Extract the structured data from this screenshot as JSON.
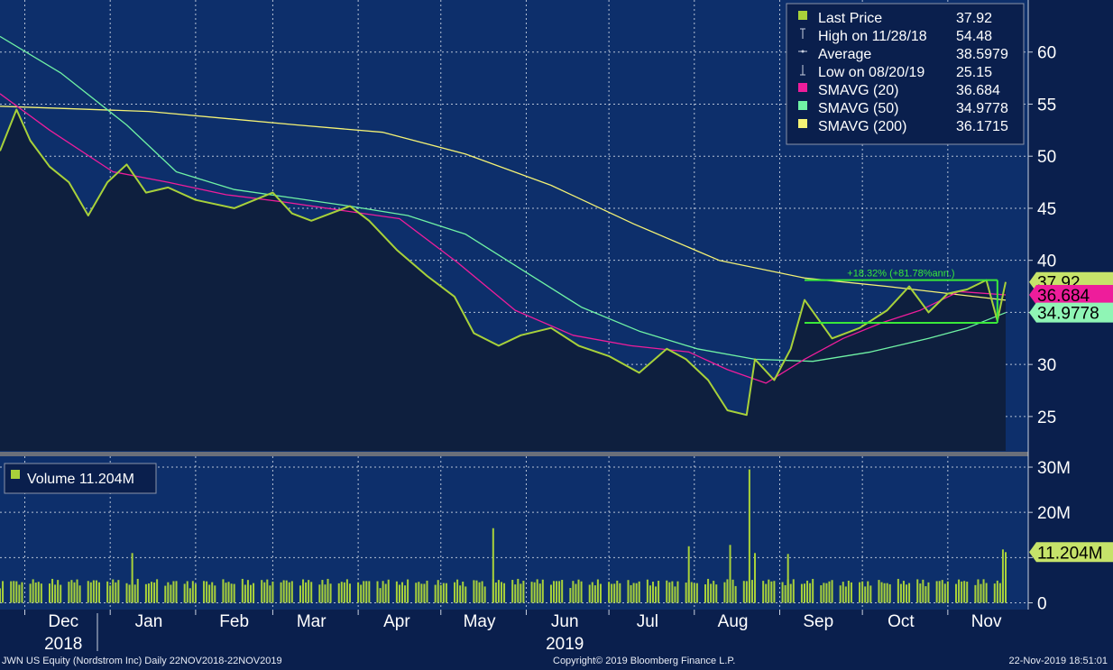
{
  "chart_data": {
    "type": "line",
    "price_panel": {
      "ylim": [
        21.7,
        65
      ],
      "yticks": [
        25,
        30,
        35,
        40,
        45,
        50,
        55,
        60
      ],
      "grid": true,
      "series": [
        {
          "name": "Last Price",
          "color": "#a8d13a",
          "x": [
            "2018-11-22",
            "2018-11-28",
            "2018-12-03",
            "2018-12-10",
            "2018-12-17",
            "2018-12-24",
            "2018-12-31",
            "2019-01-07",
            "2019-01-14",
            "2019-01-22",
            "2019-02-01",
            "2019-02-15",
            "2019-03-01",
            "2019-03-08",
            "2019-03-15",
            "2019-03-22",
            "2019-03-29",
            "2019-04-05",
            "2019-04-15",
            "2019-04-26",
            "2019-05-06",
            "2019-05-13",
            "2019-05-22",
            "2019-05-30",
            "2019-06-10",
            "2019-06-20",
            "2019-07-01",
            "2019-07-12",
            "2019-07-22",
            "2019-07-29",
            "2019-08-06",
            "2019-08-13",
            "2019-08-20",
            "2019-08-23",
            "2019-08-30",
            "2019-09-05",
            "2019-09-10",
            "2019-09-20",
            "2019-09-30",
            "2019-10-10",
            "2019-10-18",
            "2019-10-25",
            "2019-11-01",
            "2019-11-08",
            "2019-11-15",
            "2019-11-19",
            "2019-11-22"
          ],
          "y": [
            50.5,
            54.48,
            51.5,
            49,
            47.5,
            44.3,
            47.5,
            49.2,
            46.5,
            47,
            45.8,
            45,
            46.5,
            44.5,
            43.8,
            44.5,
            45.2,
            43.8,
            41,
            38.5,
            36.5,
            33,
            31.8,
            32.8,
            33.5,
            31.8,
            30.8,
            29.2,
            31.5,
            30.5,
            28.5,
            25.6,
            25.15,
            30.5,
            28.5,
            31.5,
            36.2,
            32.5,
            33.5,
            35.2,
            37.5,
            35,
            36.8,
            37.2,
            38.1,
            34.2,
            37.92
          ]
        },
        {
          "name": "SMAVG (20)",
          "color": "#ee1d9b",
          "x": [
            "2018-11-22",
            "2018-12-10",
            "2019-01-02",
            "2019-01-22",
            "2019-02-12",
            "2019-03-05",
            "2019-03-26",
            "2019-04-16",
            "2019-05-07",
            "2019-05-28",
            "2019-06-18",
            "2019-07-09",
            "2019-07-30",
            "2019-08-13",
            "2019-08-27",
            "2019-09-10",
            "2019-09-24",
            "2019-10-08",
            "2019-10-22",
            "2019-11-05",
            "2019-11-22"
          ],
          "y": [
            56,
            52.5,
            48.5,
            47.5,
            46.3,
            45.6,
            44.8,
            44,
            39.8,
            35.2,
            32.8,
            31.8,
            31.2,
            29.5,
            28.2,
            30.5,
            32.5,
            34,
            35.2,
            37,
            36.684
          ]
        },
        {
          "name": "SMAVG (50)",
          "color": "#6ff2a5",
          "x": [
            "2018-11-22",
            "2018-12-14",
            "2019-01-07",
            "2019-01-25",
            "2019-02-15",
            "2019-03-08",
            "2019-03-29",
            "2019-04-19",
            "2019-05-10",
            "2019-05-31",
            "2019-06-21",
            "2019-07-12",
            "2019-08-02",
            "2019-08-23",
            "2019-09-13",
            "2019-10-04",
            "2019-10-25",
            "2019-11-08",
            "2019-11-22"
          ],
          "y": [
            61.5,
            58,
            53,
            48.5,
            46.8,
            46,
            45.2,
            44.3,
            42.5,
            39,
            35.5,
            33.2,
            31.5,
            30.5,
            30.3,
            31.2,
            32.5,
            33.5,
            34.9778
          ]
        },
        {
          "name": "SMAVG (200)",
          "color": "#f4f275",
          "x": [
            "2018-11-22",
            "2019-01-15",
            "2019-03-10",
            "2019-04-10",
            "2019-05-10",
            "2019-06-10",
            "2019-07-10",
            "2019-08-10",
            "2019-09-10",
            "2019-10-10",
            "2019-11-22"
          ],
          "y": [
            54.8,
            54.3,
            53,
            52.3,
            50.2,
            47.2,
            43.5,
            40,
            38.3,
            37.5,
            36.1715
          ]
        }
      ],
      "annotation": {
        "label": "+18.32% (+81.78%ann.)",
        "from": {
          "x": "2019-09-10",
          "y": 34
        },
        "to": {
          "x": "2019-11-19",
          "y": 38.1
        }
      }
    },
    "volume_panel": {
      "label": "Volume 11.204M",
      "ylim": [
        -1.5,
        32
      ],
      "yticks": [
        0,
        10,
        20,
        30
      ],
      "ytick_labels": [
        "0",
        "",
        "20M",
        "30M"
      ],
      "units": "M",
      "spikes": [
        {
          "x": "2019-01-09",
          "y": 11
        },
        {
          "x": "2019-05-20",
          "y": 16.5
        },
        {
          "x": "2019-07-30",
          "y": 12.5
        },
        {
          "x": "2019-08-14",
          "y": 12.8
        },
        {
          "x": "2019-08-21",
          "y": 29.5
        },
        {
          "x": "2019-08-23",
          "y": 11
        },
        {
          "x": "2019-09-04",
          "y": 10.8
        },
        {
          "x": "2019-11-21",
          "y": 11.8
        }
      ],
      "last": {
        "x": "2019-11-22",
        "y": 11.204
      }
    },
    "x_axis": {
      "months": [
        {
          "label": "Dec",
          "date": "2018-12-15"
        },
        {
          "label": "Jan",
          "date": "2019-01-15"
        },
        {
          "label": "Feb",
          "date": "2019-02-15"
        },
        {
          "label": "Mar",
          "date": "2019-03-15"
        },
        {
          "label": "Apr",
          "date": "2019-04-15"
        },
        {
          "label": "May",
          "date": "2019-05-15"
        },
        {
          "label": "Jun",
          "date": "2019-06-15"
        },
        {
          "label": "Jul",
          "date": "2019-07-15"
        },
        {
          "label": "Aug",
          "date": "2019-08-15"
        },
        {
          "label": "Sep",
          "date": "2019-09-15"
        },
        {
          "label": "Oct",
          "date": "2019-10-15"
        },
        {
          "label": "Nov",
          "date": "2019-11-15"
        }
      ],
      "years": [
        {
          "label": "2018",
          "date": "2018-12-15"
        },
        {
          "label": "2019",
          "date": "2019-06-15"
        }
      ]
    },
    "legend": {
      "placement": "top-right",
      "items": [
        {
          "icon": "square",
          "label": "Last Price",
          "value": "37.92",
          "color": "#a8d13a"
        },
        {
          "icon": "high-marker",
          "label": "High on 11/28/18",
          "value": "54.48",
          "color": "#c8cfe0"
        },
        {
          "icon": "average-marker",
          "label": "Average",
          "value": "38.5979",
          "color": "#c8cfe0"
        },
        {
          "icon": "low-marker",
          "label": "Low on 08/20/19",
          "value": "25.15",
          "color": "#c8cfe0"
        },
        {
          "icon": "square",
          "label": "SMAVG (20)",
          "value": "36.684",
          "color": "#ee1d9b"
        },
        {
          "icon": "square",
          "label": "SMAVG (50)",
          "value": "34.9778",
          "color": "#6ff2a5"
        },
        {
          "icon": "square",
          "label": "SMAVG (200)",
          "value": "36.1715",
          "color": "#f4f275"
        }
      ]
    },
    "value_tags": [
      {
        "value": 37.92,
        "label": "37.92",
        "color": "#c6e36a"
      },
      {
        "value": 36.684,
        "label": "36.684",
        "color": "#ee1d9b"
      },
      {
        "value": 34.9778,
        "label": "34.9778",
        "color": "#8ff5b5"
      }
    ]
  },
  "footer": {
    "left": "JWN US Equity (Nordstrom Inc)  Daily 22NOV2018-22NOV2019",
    "center": "Copyright© 2019 Bloomberg Finance L.P.",
    "right": "22-Nov-2019 18:51:01"
  },
  "colors": {
    "background": "#0a1f4d",
    "plot": "#0d2f6b",
    "grid": "#dfe6f0",
    "area_fill": "#0e1f3e"
  }
}
